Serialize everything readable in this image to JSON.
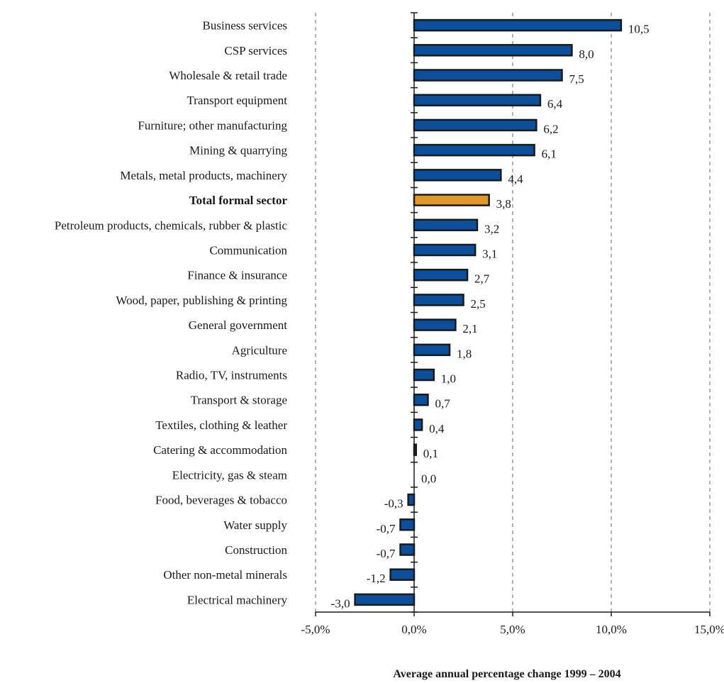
{
  "chart_data": {
    "type": "bar",
    "orientation": "horizontal",
    "categories": [
      "Business services",
      "CSP services",
      "Wholesale & retail trade",
      "Transport equipment",
      "Furniture; other manufacturing",
      "Mining & quarrying",
      "Metals, metal products, machinery",
      "Total formal sector",
      "Petroleum products, chemicals, rubber & plastic",
      "Communication",
      "Finance & insurance",
      "Wood, paper, publishing & printing",
      "General government",
      "Agriculture",
      "Radio, TV, instruments",
      "Transport & storage",
      "Textiles, clothing & leather",
      "Catering & accommodation",
      "Electricity, gas & steam",
      "Food, beverages & tobacco",
      "Water supply",
      "Construction",
      "Other non-metal minerals",
      "Electrical machinery"
    ],
    "values": [
      10.5,
      8.0,
      7.5,
      6.4,
      6.2,
      6.1,
      4.4,
      3.8,
      3.2,
      3.1,
      2.7,
      2.5,
      2.1,
      1.8,
      1.0,
      0.7,
      0.4,
      0.1,
      0.0,
      -0.3,
      -0.7,
      -0.7,
      -1.2,
      -3.0
    ],
    "value_labels": [
      "10,5",
      "8,0",
      "7,5",
      "6,4",
      "6,2",
      "6,1",
      "4,4",
      "3,8",
      "3,2",
      "3,1",
      "2,7",
      "2,5",
      "2,1",
      "1,8",
      "1,0",
      "0,7",
      "0,4",
      "0,1",
      "0,0",
      "-0,3",
      "-0,7",
      "-0,7",
      "-1,2",
      "-3,0"
    ],
    "highlight_category": "Total formal sector",
    "xlim": [
      -5,
      15
    ],
    "x_ticks": [
      -5,
      0,
      5,
      10,
      15
    ],
    "x_tick_labels": [
      "-5,0%",
      "0,0%",
      "5,0%",
      "10,0%",
      "15,0%"
    ],
    "xlabel": "Average annual percentage change 1999 – 2004",
    "ylabel": "",
    "title": "",
    "grid": "vertical dashed",
    "colors": {
      "bar": "#0b4f9c",
      "highlight": "#e0972a",
      "bar_stroke": "#1a1a1a",
      "grid": "#999999",
      "axis": "#1a1a1a"
    }
  }
}
